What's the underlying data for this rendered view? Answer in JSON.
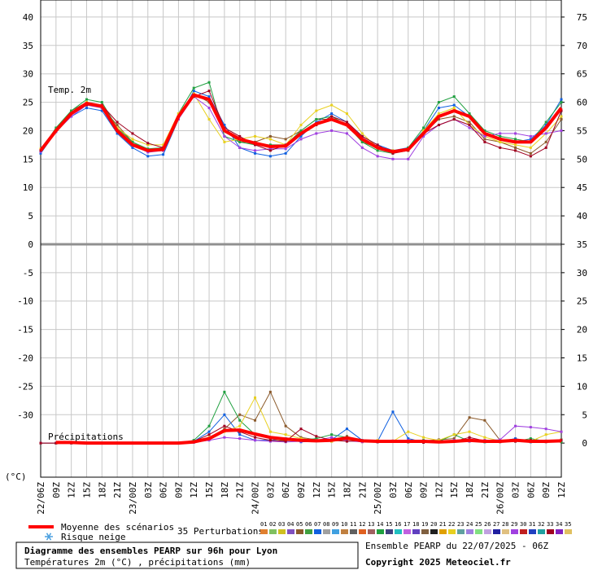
{
  "chart_data": {
    "type": "line",
    "title": "Diagramme des ensembles PEARP sur 96h pour Lyon",
    "subtitle": "Températures 2m (°C) , précipitations (mm)",
    "run_label": "Ensemble PEARP du 22/07/2025 - 06Z",
    "copyright": "Copyright 2025 Meteociel.fr",
    "y_unit": "(°C)",
    "temp_label": "Temp. 2m",
    "precip_label": "Précipitations",
    "snow_risk_label": "Risque neige",
    "perturbations_label": "35 Perturbations",
    "categories": [
      "22/06Z",
      "09Z",
      "12Z",
      "15Z",
      "18Z",
      "21Z",
      "23/00Z",
      "03Z",
      "06Z",
      "09Z",
      "12Z",
      "15Z",
      "18Z",
      "21Z",
      "24/00Z",
      "03Z",
      "06Z",
      "09Z",
      "12Z",
      "15Z",
      "18Z",
      "21Z",
      "25/00Z",
      "03Z",
      "06Z",
      "09Z",
      "12Z",
      "15Z",
      "18Z",
      "21Z",
      "26/00Z",
      "03Z",
      "06Z",
      "09Z",
      "12Z"
    ],
    "ylim": [
      -41,
      43
    ],
    "yticks": [
      -30,
      -25,
      -20,
      -15,
      -10,
      -5,
      0,
      5,
      10,
      15,
      20,
      25,
      30,
      35,
      40
    ],
    "y2lim": [
      -6,
      78
    ],
    "y2ticks": [
      0,
      5,
      10,
      15,
      20,
      25,
      30,
      35,
      40,
      45,
      50,
      55,
      60,
      65,
      70,
      75
    ],
    "grid": true,
    "mean": {
      "name": "Moyenne des scénarios",
      "color": "#ff0000",
      "temperature": [
        16.5,
        20,
        23,
        24.8,
        24.3,
        20,
        17.5,
        16.5,
        16.7,
        22.5,
        26.3,
        25.5,
        20,
        18.5,
        17.8,
        17.2,
        17.3,
        19.5,
        21.2,
        22,
        21,
        18.5,
        17,
        16.3,
        16.7,
        19.5,
        22.5,
        23.5,
        22.5,
        19.5,
        18.5,
        18,
        18,
        20.5,
        24
      ],
      "precipitation": [
        null,
        0.1,
        0.1,
        0,
        0,
        0,
        0,
        0,
        0,
        0,
        0.2,
        0.8,
        2.2,
        2.3,
        1.6,
        1.0,
        0.7,
        0.5,
        0.4,
        0.5,
        0.9,
        0.4,
        0.3,
        0.3,
        0.3,
        0.3,
        0.2,
        0.3,
        0.5,
        0.3,
        0.3,
        0.5,
        0.3,
        0.3,
        0.4
      ]
    },
    "perturbations": [
      {
        "label": "01",
        "color": "#e08030"
      },
      {
        "label": "02",
        "color": "#80c060"
      },
      {
        "label": "03",
        "color": "#d0c020"
      },
      {
        "label": "04",
        "color": "#8050c0"
      },
      {
        "label": "05",
        "color": "#8b5a2b",
        "temperature": [
          16.5,
          20,
          23.5,
          25,
          24,
          21,
          18,
          16.5,
          16.5,
          22.5,
          26.5,
          25,
          20,
          18,
          18,
          19,
          18.5,
          20,
          22,
          22,
          21,
          18,
          17,
          16.5,
          16.5,
          19.5,
          22,
          22.5,
          21.5,
          18.5,
          18,
          17,
          16,
          18,
          22
        ],
        "precipitation": [
          0,
          0,
          0,
          0,
          0,
          0,
          0,
          0,
          0,
          0,
          0.2,
          0.8,
          2.5,
          5,
          4,
          9,
          3,
          1,
          0.6,
          0.3,
          1.2,
          0.3,
          0.2,
          0.3,
          0.2,
          0.4,
          0.6,
          0.8,
          4.5,
          4,
          0.5,
          0.3,
          0.2,
          0.4,
          0.6
        ]
      },
      {
        "label": "06",
        "color": "#40a040"
      },
      {
        "label": "07",
        "color": "#1060e0",
        "temperature": [
          16,
          19.8,
          22.5,
          24,
          23.5,
          19.5,
          17,
          15.5,
          15.8,
          22,
          27,
          26,
          21,
          17,
          16,
          15.5,
          16,
          19,
          21.5,
          23,
          21.5,
          19,
          17.5,
          16.5,
          17,
          20,
          24,
          24.5,
          22.5,
          19.5,
          18.5,
          18,
          18.5,
          21,
          25.5
        ],
        "precipitation": [
          0,
          0,
          0,
          0,
          0,
          0,
          0,
          0,
          0,
          0,
          0.3,
          2,
          5,
          1.5,
          0.5,
          0.5,
          0.8,
          0.2,
          0.4,
          0.6,
          2.5,
          0.5,
          0.3,
          5.5,
          0.8,
          0.2,
          0.5,
          0.3,
          0.6,
          0.2,
          0.3,
          0.8,
          0.2,
          0.3,
          0.3
        ]
      },
      {
        "label": "08",
        "color": "#a0a0a0"
      },
      {
        "label": "09",
        "color": "#40a0e0"
      },
      {
        "label": "10",
        "color": "#c08040"
      },
      {
        "label": "11",
        "color": "#606060"
      },
      {
        "label": "12",
        "color": "#e06020"
      },
      {
        "label": "13",
        "color": "#a06060"
      },
      {
        "label": "14",
        "color": "#20a040",
        "temperature": [
          16.5,
          20.5,
          23.5,
          25.5,
          25,
          20.5,
          18,
          16.8,
          17,
          23,
          27.5,
          28.5,
          19,
          18,
          17.5,
          17.5,
          17.5,
          20,
          22,
          22.5,
          21,
          18,
          16.5,
          16,
          17,
          20.5,
          25,
          26,
          23,
          20,
          19,
          18.5,
          18,
          21.5,
          25
        ],
        "precipitation": [
          0,
          0,
          0,
          0,
          0,
          0,
          0,
          0,
          0,
          0,
          0.5,
          3,
          9,
          4,
          1.5,
          0.8,
          0.4,
          0.5,
          0.8,
          1.5,
          1,
          0.3,
          0.2,
          0.3,
          0.2,
          0.5,
          0.3,
          1.5,
          0.3,
          0.2,
          0.4,
          0.3,
          0.8,
          0.3,
          0.2
        ]
      },
      {
        "label": "15",
        "color": "#404080"
      },
      {
        "label": "16",
        "color": "#20c0c0"
      },
      {
        "label": "17",
        "color": "#c060e0"
      },
      {
        "label": "18",
        "color": "#6040c0"
      },
      {
        "label": "19",
        "color": "#806040"
      },
      {
        "label": "20",
        "color": "#202020"
      },
      {
        "label": "21",
        "color": "#e0a000"
      },
      {
        "label": "22",
        "color": "#e8d020",
        "temperature": [
          16.8,
          20,
          23,
          25,
          24.5,
          20.5,
          18.5,
          17.5,
          17.5,
          23,
          26.5,
          22,
          18,
          18.5,
          19,
          18.5,
          17.5,
          21,
          23.5,
          24.5,
          23,
          19.5,
          17,
          16.5,
          16.5,
          20,
          23,
          24,
          21,
          19,
          18,
          17.5,
          17,
          19.5,
          22.5
        ],
        "precipitation": [
          0,
          0,
          0,
          0,
          0,
          0,
          0,
          0,
          0,
          0,
          0.2,
          1,
          2,
          3,
          8,
          2,
          1.5,
          0.8,
          0.5,
          0.3,
          0.6,
          0.2,
          0.5,
          0.3,
          2,
          1,
          0.5,
          1.5,
          2,
          1,
          0.4,
          0.5,
          0.3,
          1.5,
          2
        ]
      },
      {
        "label": "23",
        "color": "#60a0a0"
      },
      {
        "label": "24",
        "color": "#a080e0"
      },
      {
        "label": "25",
        "color": "#80e080"
      },
      {
        "label": "26",
        "color": "#c0a0e0"
      },
      {
        "label": "27",
        "color": "#2020a0"
      },
      {
        "label": "28",
        "color": "#e0c080"
      },
      {
        "label": "29",
        "color": "#a040e0",
        "temperature": [
          16.3,
          19.8,
          22.5,
          24.5,
          24,
          20,
          17.5,
          16.2,
          16.5,
          22,
          26,
          24,
          19,
          17,
          16.5,
          16.8,
          16.8,
          18.5,
          19.5,
          20,
          19.5,
          17,
          15.5,
          15,
          15,
          19,
          21,
          22,
          20.5,
          19,
          19.5,
          19.5,
          19,
          19.5,
          20
        ],
        "precipitation": [
          0,
          0,
          0,
          0,
          0,
          0,
          0,
          0,
          0,
          0,
          0.1,
          0.5,
          1,
          0.8,
          0.5,
          0.3,
          0.2,
          0.3,
          0.5,
          1,
          0.4,
          0.2,
          0.2,
          0.3,
          0.5,
          0.4,
          0.2,
          0.5,
          0.3,
          0.5,
          0.6,
          3,
          2.8,
          2.5,
          2
        ]
      },
      {
        "label": "30",
        "color": "#c02020"
      },
      {
        "label": "31",
        "color": "#2040c0"
      },
      {
        "label": "32",
        "color": "#20a0a0"
      },
      {
        "label": "33",
        "color": "#a00020",
        "temperature": [
          16.5,
          20,
          23,
          24.5,
          24.5,
          21.5,
          19.5,
          17.8,
          17,
          22.5,
          26,
          27,
          20.5,
          19,
          17.5,
          16.5,
          17.5,
          19.5,
          21,
          22.5,
          21.5,
          19,
          17.5,
          16,
          16.5,
          19.5,
          21,
          22,
          21,
          18,
          17,
          16.5,
          15.5,
          17,
          23.5
        ],
        "precipitation": [
          0,
          0,
          0,
          0,
          0,
          0,
          0,
          0,
          0,
          0,
          0.3,
          1.5,
          3,
          2,
          1,
          0.5,
          0.3,
          2.5,
          1.2,
          0.5,
          0.3,
          0.4,
          0.2,
          0.4,
          0.2,
          0.1,
          0.2,
          0.3,
          1,
          0.4,
          0.2,
          0.3,
          0.5,
          0.2,
          0.5
        ]
      },
      {
        "label": "34",
        "color": "#8020c0"
      },
      {
        "label": "35",
        "color": "#e0c060"
      }
    ]
  }
}
